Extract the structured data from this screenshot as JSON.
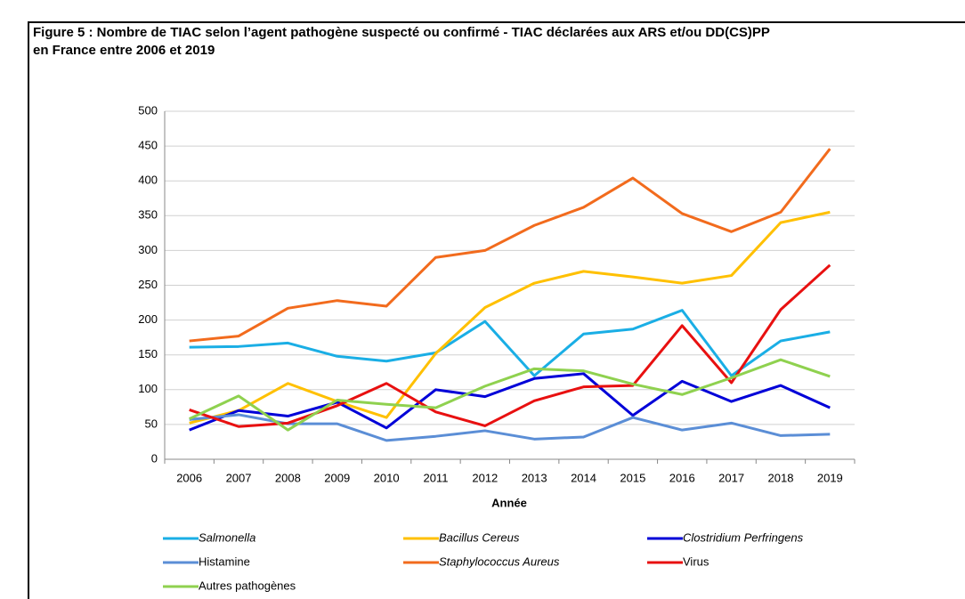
{
  "chart_data": {
    "type": "line",
    "title": "Figure 5 : Nombre de TIAC selon l’agent pathogène suspecté ou confirmé - TIAC déclarées aux ARS et/ou DD(CS)PP",
    "subtitle": "en France entre 2006 et 2019",
    "x_label": "Année",
    "categories": [
      "2006",
      "2007",
      "2008",
      "2009",
      "2010",
      "2011",
      "2012",
      "2013",
      "2014",
      "2015",
      "2016",
      "2017",
      "2018",
      "2019"
    ],
    "ylim": [
      0,
      500
    ],
    "yticks": [
      0,
      50,
      100,
      150,
      200,
      250,
      300,
      350,
      400,
      450,
      500
    ],
    "grid": true,
    "series": [
      {
        "name": "Salmonella",
        "color": "#1aaee5",
        "italic": true,
        "values": [
          161,
          162,
          167,
          148,
          141,
          153,
          198,
          120,
          180,
          187,
          214,
          120,
          170,
          183
        ]
      },
      {
        "name": "Bacillus Cereus",
        "color": "#ffc000",
        "italic": true,
        "values": [
          52,
          70,
          109,
          83,
          60,
          152,
          218,
          253,
          270,
          262,
          253,
          264,
          340,
          355
        ]
      },
      {
        "name": "Clostridium Perfringens",
        "color": "#0000d8",
        "italic": true,
        "values": [
          42,
          70,
          62,
          82,
          45,
          100,
          90,
          116,
          123,
          63,
          112,
          83,
          106,
          74
        ]
      },
      {
        "name": "Histamine",
        "color": "#5b8ed6",
        "italic": false,
        "values": [
          57,
          64,
          51,
          51,
          27,
          33,
          41,
          29,
          32,
          60,
          42,
          52,
          34,
          36
        ]
      },
      {
        "name": "Staphylococcus Aureus",
        "color": "#f26b1d",
        "italic": true,
        "values": [
          170,
          177,
          217,
          228,
          220,
          290,
          300,
          336,
          362,
          404,
          353,
          327,
          355,
          446
        ]
      },
      {
        "name": "Virus",
        "color": "#e81010",
        "italic": false,
        "values": [
          71,
          47,
          52,
          77,
          109,
          68,
          48,
          84,
          104,
          106,
          192,
          110,
          215,
          279
        ]
      },
      {
        "name": "Autres pathogènes",
        "color": "#8fd14f",
        "italic": false,
        "values": [
          58,
          91,
          42,
          85,
          79,
          74,
          105,
          130,
          127,
          108,
          93,
          117,
          143,
          119
        ]
      }
    ]
  }
}
